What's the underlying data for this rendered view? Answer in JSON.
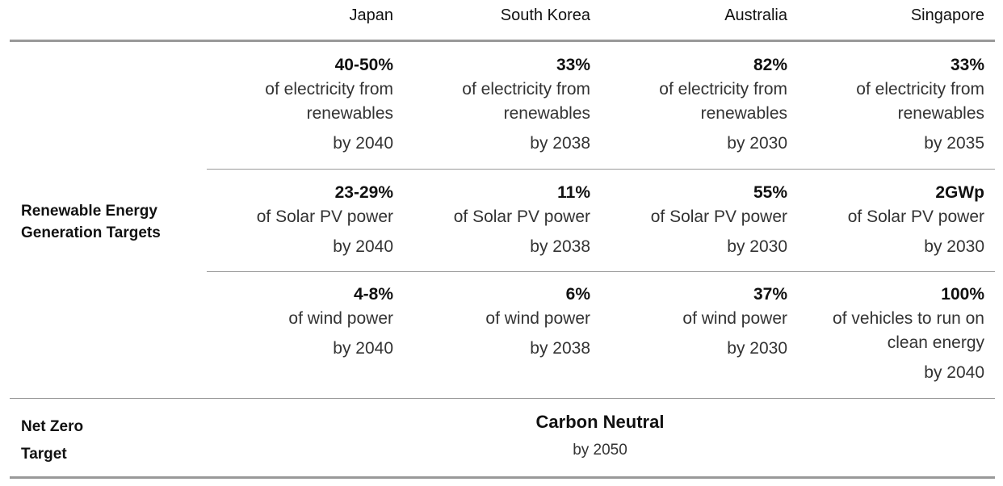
{
  "header": {
    "columns": [
      "Japan",
      "South Korea",
      "Australia",
      "Singapore"
    ]
  },
  "renewables": {
    "label": [
      "Renewable Energy",
      "Generation Targets"
    ],
    "rows": [
      [
        {
          "value": "40-50%",
          "lines": [
            "of electricity from",
            "renewables"
          ],
          "by": "by 2040"
        },
        {
          "value": "33%",
          "lines": [
            "of electricity from",
            "renewables"
          ],
          "by": "by 2038"
        },
        {
          "value": "82%",
          "lines": [
            "of electricity from",
            "renewables"
          ],
          "by": "by 2030"
        },
        {
          "value": "33%",
          "lines": [
            "of electricity from",
            "renewables"
          ],
          "by": "by 2035"
        }
      ],
      [
        {
          "value": "23-29%",
          "lines": [
            "of Solar PV power"
          ],
          "by": "by 2040"
        },
        {
          "value": "11%",
          "lines": [
            "of Solar PV power"
          ],
          "by": "by 2038"
        },
        {
          "value": "55%",
          "lines": [
            "of Solar PV power"
          ],
          "by": "by 2030"
        },
        {
          "value": "2GWp",
          "lines": [
            "of Solar PV power"
          ],
          "by": "by 2030"
        }
      ],
      [
        {
          "value": "4-8%",
          "lines": [
            "of wind power"
          ],
          "by": "by 2040"
        },
        {
          "value": "6%",
          "lines": [
            "of wind power"
          ],
          "by": "by 2038"
        },
        {
          "value": "37%",
          "lines": [
            "of wind power"
          ],
          "by": "by 2030"
        },
        {
          "value": "100%",
          "lines": [
            "of vehicles to run on",
            "clean energy"
          ],
          "by": "by 2040"
        }
      ]
    ]
  },
  "net_zero": {
    "label": [
      "Net Zero",
      "Target"
    ],
    "value": "Carbon Neutral",
    "by": "by 2050"
  }
}
